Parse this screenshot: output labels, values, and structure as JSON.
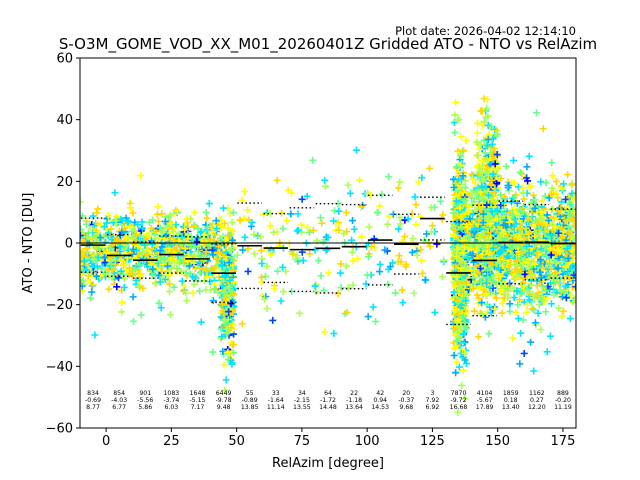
{
  "chart_data": {
    "type": "scatter",
    "title": "S-O3M_GOME_VOD_XX_M01_20260401Z Gridded ATO - NTO vs RelAzim",
    "plot_date": "Plot date: 2026-04-02 12:14:10",
    "xlabel": "RelAzim [degree]",
    "ylabel": "ATO - NTO [DU]",
    "xlim": [
      -10,
      180
    ],
    "ylim": [
      -60,
      60
    ],
    "xticks": [
      0,
      25,
      50,
      75,
      100,
      125,
      150,
      175
    ],
    "xtick_labels": [
      "0",
      "25",
      "50",
      "75",
      "100",
      "125",
      "150",
      "175"
    ],
    "yticks": [
      -60,
      -40,
      -20,
      0,
      20,
      40,
      60
    ],
    "ytick_labels": [
      "−60",
      "−40",
      "−20",
      "0",
      "20",
      "40",
      "60"
    ],
    "marker": "+",
    "palette": [
      "#0000ff",
      "#0044ff",
      "#00aaff",
      "#00e5ff",
      "#66ff88",
      "#aaff55",
      "#ffff00",
      "#ffd700"
    ],
    "zero_line": 0,
    "bin_width": 10,
    "bins": [
      {
        "center": -5,
        "count": "834",
        "mean": "-0.69",
        "std": "8.77",
        "mean_val": -0.69,
        "std_val": 8.77
      },
      {
        "center": 5,
        "count": "854",
        "mean": "-4.03",
        "std": "6.77",
        "mean_val": -4.03,
        "std_val": 6.77
      },
      {
        "center": 15,
        "count": "901",
        "mean": "-5.56",
        "std": "5.86",
        "mean_val": -5.56,
        "std_val": 5.86
      },
      {
        "center": 25,
        "count": "1083",
        "mean": "-3.74",
        "std": "6.03",
        "mean_val": -3.74,
        "std_val": 6.03
      },
      {
        "center": 35,
        "count": "1648",
        "mean": "-5.15",
        "std": "7.17",
        "mean_val": -5.15,
        "std_val": 7.17
      },
      {
        "center": 45,
        "count": "6449",
        "mean": "-9.78",
        "std": "9.48",
        "mean_val": -9.78,
        "std_val": 9.48
      },
      {
        "center": 55,
        "count": "55",
        "mean": "-0.89",
        "std": "13.85",
        "mean_val": -0.89,
        "std_val": 13.85
      },
      {
        "center": 65,
        "count": "33",
        "mean": "-1.64",
        "std": "11.14",
        "mean_val": -1.64,
        "std_val": 11.14
      },
      {
        "center": 75,
        "count": "34",
        "mean": "-2.15",
        "std": "13.55",
        "mean_val": -2.15,
        "std_val": 13.55
      },
      {
        "center": 85,
        "count": "64",
        "mean": "-1.72",
        "std": "14.48",
        "mean_val": -1.72,
        "std_val": 14.48
      },
      {
        "center": 95,
        "count": "22",
        "mean": "-1.18",
        "std": "13.64",
        "mean_val": -1.18,
        "std_val": 13.64
      },
      {
        "center": 105,
        "count": "42",
        "mean": "0.94",
        "std": "14.53",
        "mean_val": 0.94,
        "std_val": 14.53
      },
      {
        "center": 115,
        "count": "20",
        "mean": "-0.37",
        "std": "9.68",
        "mean_val": -0.37,
        "std_val": 9.68
      },
      {
        "center": 125,
        "count": "3",
        "mean": "7.92",
        "std": "6.92",
        "mean_val": 7.92,
        "std_val": 6.92
      },
      {
        "center": 135,
        "count": "7870",
        "mean": "-9.72",
        "std": "16.68",
        "mean_val": -9.72,
        "std_val": 16.68
      },
      {
        "center": 145,
        "count": "4104",
        "mean": "-5.67",
        "std": "17.89",
        "mean_val": -5.67,
        "std_val": 17.89
      },
      {
        "center": 155,
        "count": "1859",
        "mean": "0.18",
        "std": "13.40",
        "mean_val": 0.18,
        "std_val": 13.4
      },
      {
        "center": 165,
        "count": "1162",
        "mean": "0.27",
        "std": "12.20",
        "mean_val": 0.27,
        "std_val": 12.2
      },
      {
        "center": 175,
        "count": "889",
        "mean": "-0.20",
        "std": "11.19",
        "mean_val": -0.2,
        "std_val": 11.19
      }
    ],
    "point_clusters": [
      {
        "x_range": [
          -10,
          49
        ],
        "y_mean": -3,
        "y_spread": 10,
        "density": 900
      },
      {
        "x_range": [
          44,
          49
        ],
        "y_mean": -18,
        "y_spread": 14,
        "density": 250
      },
      {
        "x_range": [
          50,
          130
        ],
        "y_mean": 0,
        "y_spread": 16,
        "density": 230
      },
      {
        "x_range": [
          133,
          138
        ],
        "y_mean": -6,
        "y_spread": 24,
        "density": 600
      },
      {
        "x_range": [
          138,
          180
        ],
        "y_mean": -2,
        "y_spread": 16,
        "density": 1300
      },
      {
        "x_range": [
          142,
          150
        ],
        "y_mean": 20,
        "y_spread": 18,
        "density": 250
      }
    ]
  }
}
